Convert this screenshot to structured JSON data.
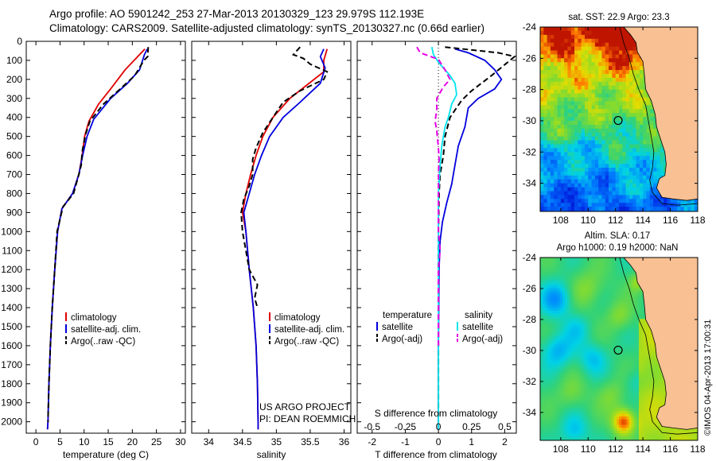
{
  "header": {
    "line1": "Argo profile: AO 5901242_253 27-Mar-2013 20130329_123 29.979S 112.193E",
    "line2": "Climatology: CARS2009. Satellite-adjusted climatology: synTS_20130327.nc (0.66d earlier)"
  },
  "chart_data": [
    {
      "id": "temperature",
      "type": "line",
      "xlabel": "temperature (deg C)",
      "ylabel": "",
      "xlim": [
        -2,
        31
      ],
      "ylim": [
        2060,
        0
      ],
      "xticks": [
        "0",
        "5",
        "10",
        "15",
        "20",
        "25",
        "30"
      ],
      "xtick_values": [
        0,
        5,
        10,
        15,
        20,
        25,
        30
      ],
      "yticks": [
        "0",
        "100",
        "200",
        "300",
        "400",
        "500",
        "600",
        "700",
        "800",
        "900",
        "1000",
        "1100",
        "1200",
        "1300",
        "1400",
        "1500",
        "1600",
        "1700",
        "1800",
        "1900",
        "2000"
      ],
      "ytick_values": [
        0,
        100,
        200,
        300,
        400,
        500,
        600,
        700,
        800,
        900,
        1000,
        1100,
        1200,
        1300,
        1400,
        1500,
        1600,
        1700,
        1800,
        1900,
        2000
      ],
      "legend": [
        "climatology",
        "satellite-adj. clim.",
        "Argo(..raw -QC)"
      ],
      "legend_colors": [
        "#e00000",
        "#0000dd",
        "#000000"
      ],
      "series": [
        {
          "name": "climatology",
          "color": "#e00000",
          "dash": false,
          "points": [
            [
              22.6,
              40
            ],
            [
              21.5,
              70
            ],
            [
              18.5,
              150
            ],
            [
              15.5,
              250
            ],
            [
              13.0,
              330
            ],
            [
              11.0,
              420
            ],
            [
              10.1,
              500
            ],
            [
              9.6,
              600
            ],
            [
              8.9,
              700
            ],
            [
              7.6,
              800
            ],
            [
              5.4,
              880
            ],
            [
              4.5,
              1000
            ],
            [
              3.9,
              1200
            ],
            [
              3.4,
              1400
            ],
            [
              3.0,
              1600
            ],
            [
              2.7,
              1800
            ],
            [
              2.5,
              2000
            ],
            [
              2.4,
              2040
            ]
          ]
        },
        {
          "name": "satellite-adj. clim.",
          "color": "#0000dd",
          "dash": false,
          "points": [
            [
              23.1,
              40
            ],
            [
              22.5,
              70
            ],
            [
              21.5,
              150
            ],
            [
              19.0,
              220
            ],
            [
              15.5,
              300
            ],
            [
              12.0,
              410
            ],
            [
              10.6,
              500
            ],
            [
              9.7,
              600
            ],
            [
              8.9,
              700
            ],
            [
              7.6,
              800
            ],
            [
              5.4,
              880
            ],
            [
              4.5,
              1000
            ],
            [
              3.9,
              1200
            ],
            [
              3.4,
              1400
            ],
            [
              3.0,
              1600
            ],
            [
              2.7,
              1800
            ],
            [
              2.5,
              2000
            ],
            [
              2.4,
              2040
            ]
          ]
        },
        {
          "name": "Argo(..raw -QC)",
          "color": "#000000",
          "dash": true,
          "points": [
            [
              23.3,
              30
            ],
            [
              23.2,
              80
            ],
            [
              22.4,
              100
            ],
            [
              20.5,
              180
            ],
            [
              17.5,
              250
            ],
            [
              14.0,
              330
            ],
            [
              11.2,
              420
            ],
            [
              10.3,
              490
            ],
            [
              9.6,
              580
            ],
            [
              9.4,
              650
            ],
            [
              8.9,
              700
            ],
            [
              7.8,
              800
            ],
            [
              5.6,
              870
            ],
            [
              4.4,
              1000
            ],
            [
              3.9,
              1200
            ],
            [
              3.4,
              1400
            ],
            [
              3.0,
              1600
            ],
            [
              2.7,
              1800
            ],
            [
              2.5,
              2000
            ]
          ]
        }
      ]
    },
    {
      "id": "salinity",
      "type": "line",
      "xlabel": "salinity",
      "ylabel": "",
      "xlim": [
        33.75,
        36.1
      ],
      "ylim": [
        2060,
        0
      ],
      "xticks": [
        "34",
        "34.5",
        "35",
        "35.5",
        "36"
      ],
      "xtick_values": [
        34,
        34.5,
        35,
        35.5,
        36
      ],
      "legend": [
        "climatology",
        "satellite-adj. clim.",
        "Argo(..raw -QC)"
      ],
      "legend_colors": [
        "#e00000",
        "#0000dd",
        "#000000"
      ],
      "annotation_lines": [
        "US ARGO PROJECT",
        "PI: DEAN ROEMMICH"
      ],
      "series": [
        {
          "name": "climatology",
          "color": "#e00000",
          "dash": false,
          "points": [
            [
              35.75,
              40
            ],
            [
              35.7,
              100
            ],
            [
              35.7,
              160
            ],
            [
              35.45,
              230
            ],
            [
              35.2,
              300
            ],
            [
              34.95,
              400
            ],
            [
              34.8,
              500
            ],
            [
              34.7,
              600
            ],
            [
              34.62,
              700
            ],
            [
              34.55,
              800
            ],
            [
              34.5,
              900
            ],
            [
              34.55,
              1000
            ],
            [
              34.6,
              1200
            ],
            [
              34.66,
              1400
            ],
            [
              34.7,
              1600
            ],
            [
              34.72,
              1800
            ],
            [
              34.73,
              2000
            ],
            [
              34.73,
              2040
            ]
          ]
        },
        {
          "name": "satellite-adj. clim.",
          "color": "#0000dd",
          "dash": false,
          "points": [
            [
              35.7,
              40
            ],
            [
              35.65,
              80
            ],
            [
              35.72,
              140
            ],
            [
              35.65,
              220
            ],
            [
              35.35,
              320
            ],
            [
              35.1,
              400
            ],
            [
              34.9,
              500
            ],
            [
              34.78,
              600
            ],
            [
              34.68,
              700
            ],
            [
              34.6,
              800
            ],
            [
              34.52,
              900
            ],
            [
              34.55,
              1000
            ],
            [
              34.6,
              1200
            ],
            [
              34.66,
              1400
            ],
            [
              34.7,
              1600
            ],
            [
              34.72,
              1800
            ],
            [
              34.73,
              2000
            ],
            [
              34.73,
              2040
            ]
          ]
        },
        {
          "name": "Argo(..raw -QC)",
          "color": "#000000",
          "dash": true,
          "points": [
            [
              35.35,
              30
            ],
            [
              35.25,
              70
            ],
            [
              35.4,
              90
            ],
            [
              35.5,
              120
            ],
            [
              35.75,
              160
            ],
            [
              35.7,
              200
            ],
            [
              35.35,
              260
            ],
            [
              35.1,
              320
            ],
            [
              34.95,
              400
            ],
            [
              34.8,
              480
            ],
            [
              34.7,
              560
            ],
            [
              34.65,
              620
            ],
            [
              34.65,
              700
            ],
            [
              34.6,
              760
            ],
            [
              34.52,
              830
            ],
            [
              34.48,
              900
            ],
            [
              34.5,
              1000
            ],
            [
              34.55,
              1100
            ],
            [
              34.6,
              1200
            ],
            [
              34.72,
              1280
            ],
            [
              34.68,
              1350
            ],
            [
              34.72,
              1400
            ]
          ]
        }
      ]
    },
    {
      "id": "difference",
      "type": "line",
      "xlabel": "T difference from climatology",
      "x2label": "S difference from climatology",
      "ylabel": "",
      "xlim": [
        -2.45,
        2.35
      ],
      "ylim": [
        2060,
        0
      ],
      "xticks": [
        "-2",
        "-1",
        "0",
        "1",
        "2"
      ],
      "xtick_values": [
        -2,
        -1,
        0,
        1,
        2
      ],
      "x2ticks": [
        "-0.5",
        "-0.25",
        "0",
        "0.25",
        "0.5"
      ],
      "x2tick_values": [
        -0.5,
        -0.25,
        0,
        0.25,
        0.5
      ],
      "legend_headers": [
        "temperature",
        "salinity"
      ],
      "legend": [
        "satellite",
        "Argo(-adj)",
        "satellite",
        "Argo(-adj)"
      ],
      "legend_colors": [
        "#0000dd",
        "#000000",
        "#00e5ee",
        "#e600e6"
      ],
      "series": [
        {
          "name": "satellite",
          "group": "temperature",
          "color": "#0000dd",
          "dash": false,
          "points": [
            [
              0.5,
              40
            ],
            [
              0.9,
              60
            ],
            [
              1.4,
              100
            ],
            [
              1.7,
              150
            ],
            [
              1.9,
              200
            ],
            [
              1.7,
              250
            ],
            [
              1.2,
              300
            ],
            [
              0.9,
              350
            ],
            [
              0.8,
              450
            ],
            [
              0.6,
              550
            ],
            [
              0.5,
              650
            ],
            [
              0.4,
              750
            ],
            [
              0.25,
              850
            ],
            [
              0.12,
              950
            ],
            [
              0.05,
              1050
            ],
            [
              0.02,
              1200
            ],
            [
              0.0,
              1600
            ],
            [
              0.0,
              2040
            ]
          ]
        },
        {
          "name": "Argo(-adj)",
          "group": "temperature",
          "color": "#000000",
          "dash": true,
          "points": [
            [
              0.2,
              30
            ],
            [
              1.8,
              60
            ],
            [
              2.3,
              80
            ],
            [
              1.6,
              180
            ],
            [
              1.0,
              260
            ],
            [
              0.7,
              310
            ],
            [
              0.35,
              400
            ],
            [
              0.2,
              500
            ],
            [
              0.15,
              600
            ],
            [
              0.05,
              700
            ],
            [
              0.02,
              800
            ],
            [
              0.0,
              1000
            ],
            [
              0.0,
              1200
            ],
            [
              0.0,
              1600
            ],
            [
              0.0,
              2000
            ]
          ]
        },
        {
          "name": "satellite",
          "group": "salinity",
          "color": "#00e5ee",
          "dash": false,
          "points": [
            [
              -0.2,
              30
            ],
            [
              -0.15,
              70
            ],
            [
              0.0,
              110
            ],
            [
              0.35,
              180
            ],
            [
              0.5,
              220
            ],
            [
              0.55,
              280
            ],
            [
              0.4,
              330
            ],
            [
              0.3,
              400
            ],
            [
              0.2,
              450
            ],
            [
              0.1,
              550
            ],
            [
              0.05,
              650
            ],
            [
              0.0,
              800
            ],
            [
              0.0,
              1000
            ],
            [
              0.0,
              1600
            ],
            [
              0.0,
              2040
            ]
          ]
        },
        {
          "name": "Argo(-adj)",
          "group": "salinity",
          "color": "#e600e6",
          "dash": true,
          "points": [
            [
              -0.65,
              30
            ],
            [
              -0.55,
              60
            ],
            [
              0.0,
              95
            ],
            [
              0.2,
              150
            ],
            [
              0.35,
              200
            ],
            [
              0.15,
              240
            ],
            [
              -0.05,
              300
            ],
            [
              -0.05,
              360
            ],
            [
              -0.1,
              420
            ],
            [
              -0.05,
              470
            ],
            [
              0.0,
              560
            ],
            [
              0.02,
              620
            ],
            [
              0.0,
              700
            ],
            [
              0.0,
              800
            ],
            [
              0.0,
              1000
            ],
            [
              0.05,
              1100
            ],
            [
              0.0,
              1200
            ],
            [
              0.0,
              1600
            ]
          ]
        }
      ]
    },
    {
      "id": "sst_map",
      "type": "heatmap",
      "title": "sat. SST: 22.9  Argo: 23.3",
      "xlim": [
        106.5,
        118
      ],
      "ylim": [
        -35.8,
        -24
      ],
      "xticks": [
        "108",
        "110",
        "112",
        "114",
        "116",
        "118"
      ],
      "xtick_values": [
        108,
        110,
        112,
        114,
        116,
        118
      ],
      "yticks": [
        "-24",
        "-26",
        "-28",
        "-30",
        "-32",
        "-34"
      ],
      "ytick_values": [
        -24,
        -26,
        -28,
        -30,
        -32,
        -34
      ],
      "marker": {
        "lon": 112.193,
        "lat": -29.979
      },
      "land_color": "#f8c093"
    },
    {
      "id": "sla_map",
      "type": "heatmap",
      "title": "Altim. SLA: 0.17",
      "subtitle": "Argo h1000: 0.19 h2000: NaN",
      "xlim": [
        106.5,
        118
      ],
      "ylim": [
        -35.8,
        -24
      ],
      "xticks": [
        "108",
        "110",
        "112",
        "114",
        "116",
        "118"
      ],
      "xtick_values": [
        108,
        110,
        112,
        114,
        116,
        118
      ],
      "yticks": [
        "-24",
        "-26",
        "-28",
        "-30",
        "-32",
        "-34"
      ],
      "ytick_values": [
        -24,
        -26,
        -28,
        -30,
        -32,
        -34
      ],
      "marker": {
        "lon": 112.193,
        "lat": -29.979
      },
      "land_color": "#f8c093"
    }
  ],
  "watermark": "©IMOS 04-Apr-2013 17:00:31"
}
